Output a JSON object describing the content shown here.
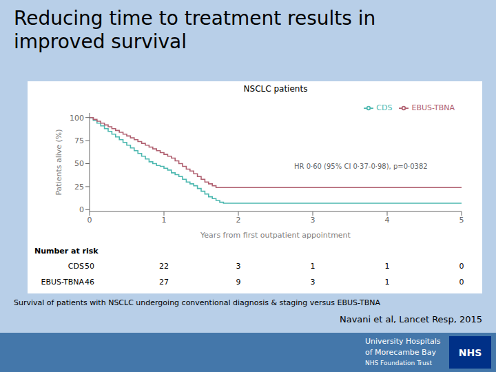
{
  "title": "Reducing time to treatment results in\nimproved survival",
  "footnote": "Survival of patients with NSCLC undergoing conventional diagnosis & staging versus EBUS-TBNA",
  "citation": "Navani et al, Lancet Resp, 2015",
  "logo_text": [
    "University Hospitals",
    "of Morecambe Bay",
    "NHS Foundation Trust",
    "NHS"
  ],
  "chart_data": {
    "type": "line",
    "title": "NSCLC patients",
    "x_label": "Years from first outpatient appointment",
    "y_label": "Patients alive (%)",
    "xlim": [
      0,
      5
    ],
    "ylim": [
      -2,
      105
    ],
    "xticks": [
      0,
      1,
      2,
      3,
      4,
      5
    ],
    "yticks": [
      0,
      25,
      50,
      75,
      100
    ],
    "grid": false,
    "legend": "upper right",
    "line_style": "step",
    "annotations": [
      "HR 0·60 (95% CI 0·37-0·98), p=0·0382"
    ],
    "series": [
      {
        "name": "CDS",
        "color": "#4db8b0",
        "x": [
          0,
          0.05,
          0.1,
          0.15,
          0.2,
          0.25,
          0.3,
          0.35,
          0.4,
          0.45,
          0.5,
          0.55,
          0.6,
          0.65,
          0.7,
          0.75,
          0.8,
          0.85,
          0.9,
          0.95,
          1.0,
          1.05,
          1.1,
          1.15,
          1.2,
          1.25,
          1.3,
          1.35,
          1.4,
          1.45,
          1.5,
          1.55,
          1.6,
          1.65,
          1.7,
          1.75,
          1.8,
          1.85,
          1.9,
          1.95,
          2.0,
          2.1,
          2.2,
          2.3,
          2.4,
          2.5,
          3.0,
          4.0,
          5.0
        ],
        "values": [
          100,
          97,
          94,
          91,
          88,
          85,
          82,
          79,
          76,
          73,
          70,
          67,
          64,
          61,
          58,
          55,
          52,
          50,
          48,
          47,
          45,
          43,
          40,
          38,
          36,
          33,
          30,
          28,
          26,
          23,
          20,
          17,
          14,
          12,
          10,
          8,
          7,
          7,
          7,
          7,
          7,
          7,
          7,
          7,
          7,
          7,
          7,
          7,
          7
        ]
      },
      {
        "name": "EBUS-TBNA",
        "color": "#b06070",
        "x": [
          0,
          0.05,
          0.1,
          0.15,
          0.2,
          0.25,
          0.3,
          0.35,
          0.4,
          0.45,
          0.5,
          0.55,
          0.6,
          0.65,
          0.7,
          0.75,
          0.8,
          0.85,
          0.9,
          0.95,
          1.0,
          1.05,
          1.1,
          1.15,
          1.2,
          1.25,
          1.3,
          1.35,
          1.4,
          1.45,
          1.5,
          1.55,
          1.6,
          1.65,
          1.7,
          1.75,
          1.8,
          1.85,
          1.9,
          1.95,
          2.0,
          2.05,
          2.1,
          2.2,
          2.3,
          3.0,
          4.0,
          5.0
        ],
        "values": [
          100,
          98,
          96,
          94,
          92,
          90,
          88,
          86,
          84,
          82,
          80,
          78,
          76,
          74,
          72,
          70,
          68,
          66,
          64,
          62,
          60,
          58,
          56,
          53,
          50,
          47,
          44,
          42,
          39,
          36,
          33,
          30,
          28,
          26,
          24,
          24,
          24,
          24,
          24,
          24,
          24,
          24,
          24,
          24,
          24,
          24,
          24,
          24
        ]
      }
    ],
    "number_at_risk": {
      "title": "Number at risk",
      "x": [
        0,
        1,
        2,
        3,
        4,
        5
      ],
      "series": [
        {
          "name": "CDS",
          "values": [
            50,
            22,
            3,
            1,
            1,
            0
          ]
        },
        {
          "name": "EBUS-TBNA",
          "values": [
            46,
            27,
            9,
            3,
            1,
            0
          ]
        }
      ]
    }
  }
}
